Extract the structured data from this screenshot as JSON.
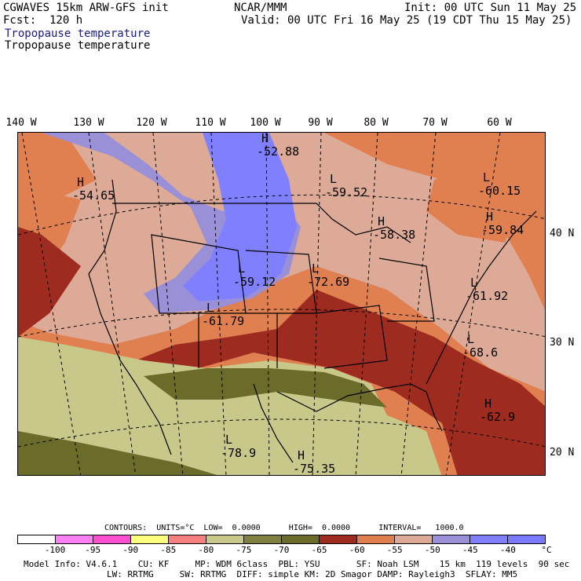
{
  "header": {
    "model": "CGWAVES 15km ARW-GFS init",
    "org": "NCAR/MMM",
    "init": "Init: 00 UTC Sun 11 May 25",
    "fcst": "Fcst:  120 h",
    "valid": "Valid: 00 UTC Fri 16 May 25 (19 CDT Thu 15 May 25)",
    "field1": "Tropopause temperature",
    "field2": "Tropopause temperature"
  },
  "map": {
    "longitude_labels": [
      "140 W",
      "130 W",
      "120 W",
      "110 W",
      "100 W",
      "90 W",
      "80 W",
      "70 W",
      "60 W"
    ],
    "latitude_labels": [
      "40 N",
      "30 N",
      "20 N"
    ],
    "extrema": [
      {
        "type": "H",
        "value": "-52.88"
      },
      {
        "type": "H",
        "value": "-54.65"
      },
      {
        "type": "L",
        "value": "-59.52"
      },
      {
        "type": "L",
        "value": "-60.15"
      },
      {
        "type": "H",
        "value": "-59.84"
      },
      {
        "type": "H",
        "value": "-58.38"
      },
      {
        "type": "L",
        "value": "-59.12"
      },
      {
        "type": "L",
        "value": "-72.69"
      },
      {
        "type": "L",
        "value": "-61.92"
      },
      {
        "type": "L",
        "value": "-61.79"
      },
      {
        "type": "L",
        "value": "-68.6"
      },
      {
        "type": "H",
        "value": "-62.9"
      },
      {
        "type": "L",
        "value": "-78.9"
      },
      {
        "type": "H",
        "value": "-75.35"
      }
    ]
  },
  "contours": {
    "text": "CONTOURS:  UNITS=°C  LOW=  0.0000      HIGH=  0.0000      INTERVAL=   1000.0"
  },
  "colorbar": {
    "colors": [
      "#ffffff",
      "#ff7ff5",
      "#ff4fd1",
      "#ffff7f",
      "#f58080",
      "#c8c88a",
      "#808040",
      "#6b6b2a",
      "#9e2b1f",
      "#e08050",
      "#ddaa98",
      "#9a90d8",
      "#8080ff",
      "#7a7aff"
    ],
    "ticks": [
      "-100",
      "-95",
      "-90",
      "-85",
      "-80",
      "-75",
      "-70",
      "-65",
      "-60",
      "-55",
      "-50",
      "-45",
      "-40"
    ],
    "unit": "°C"
  },
  "info": {
    "line1": "Model Info: V4.6.1    CU: KF     MP: WDM 6class  PBL: YSU       SF: Noah LSM    15 km  119 levels  90 sec",
    "line2": "                LW: RRTMG     SW: RRTMG  DIFF: simple KM: 2D Smagor DAMP: Rayleigh3  SFLAY: MM5"
  }
}
